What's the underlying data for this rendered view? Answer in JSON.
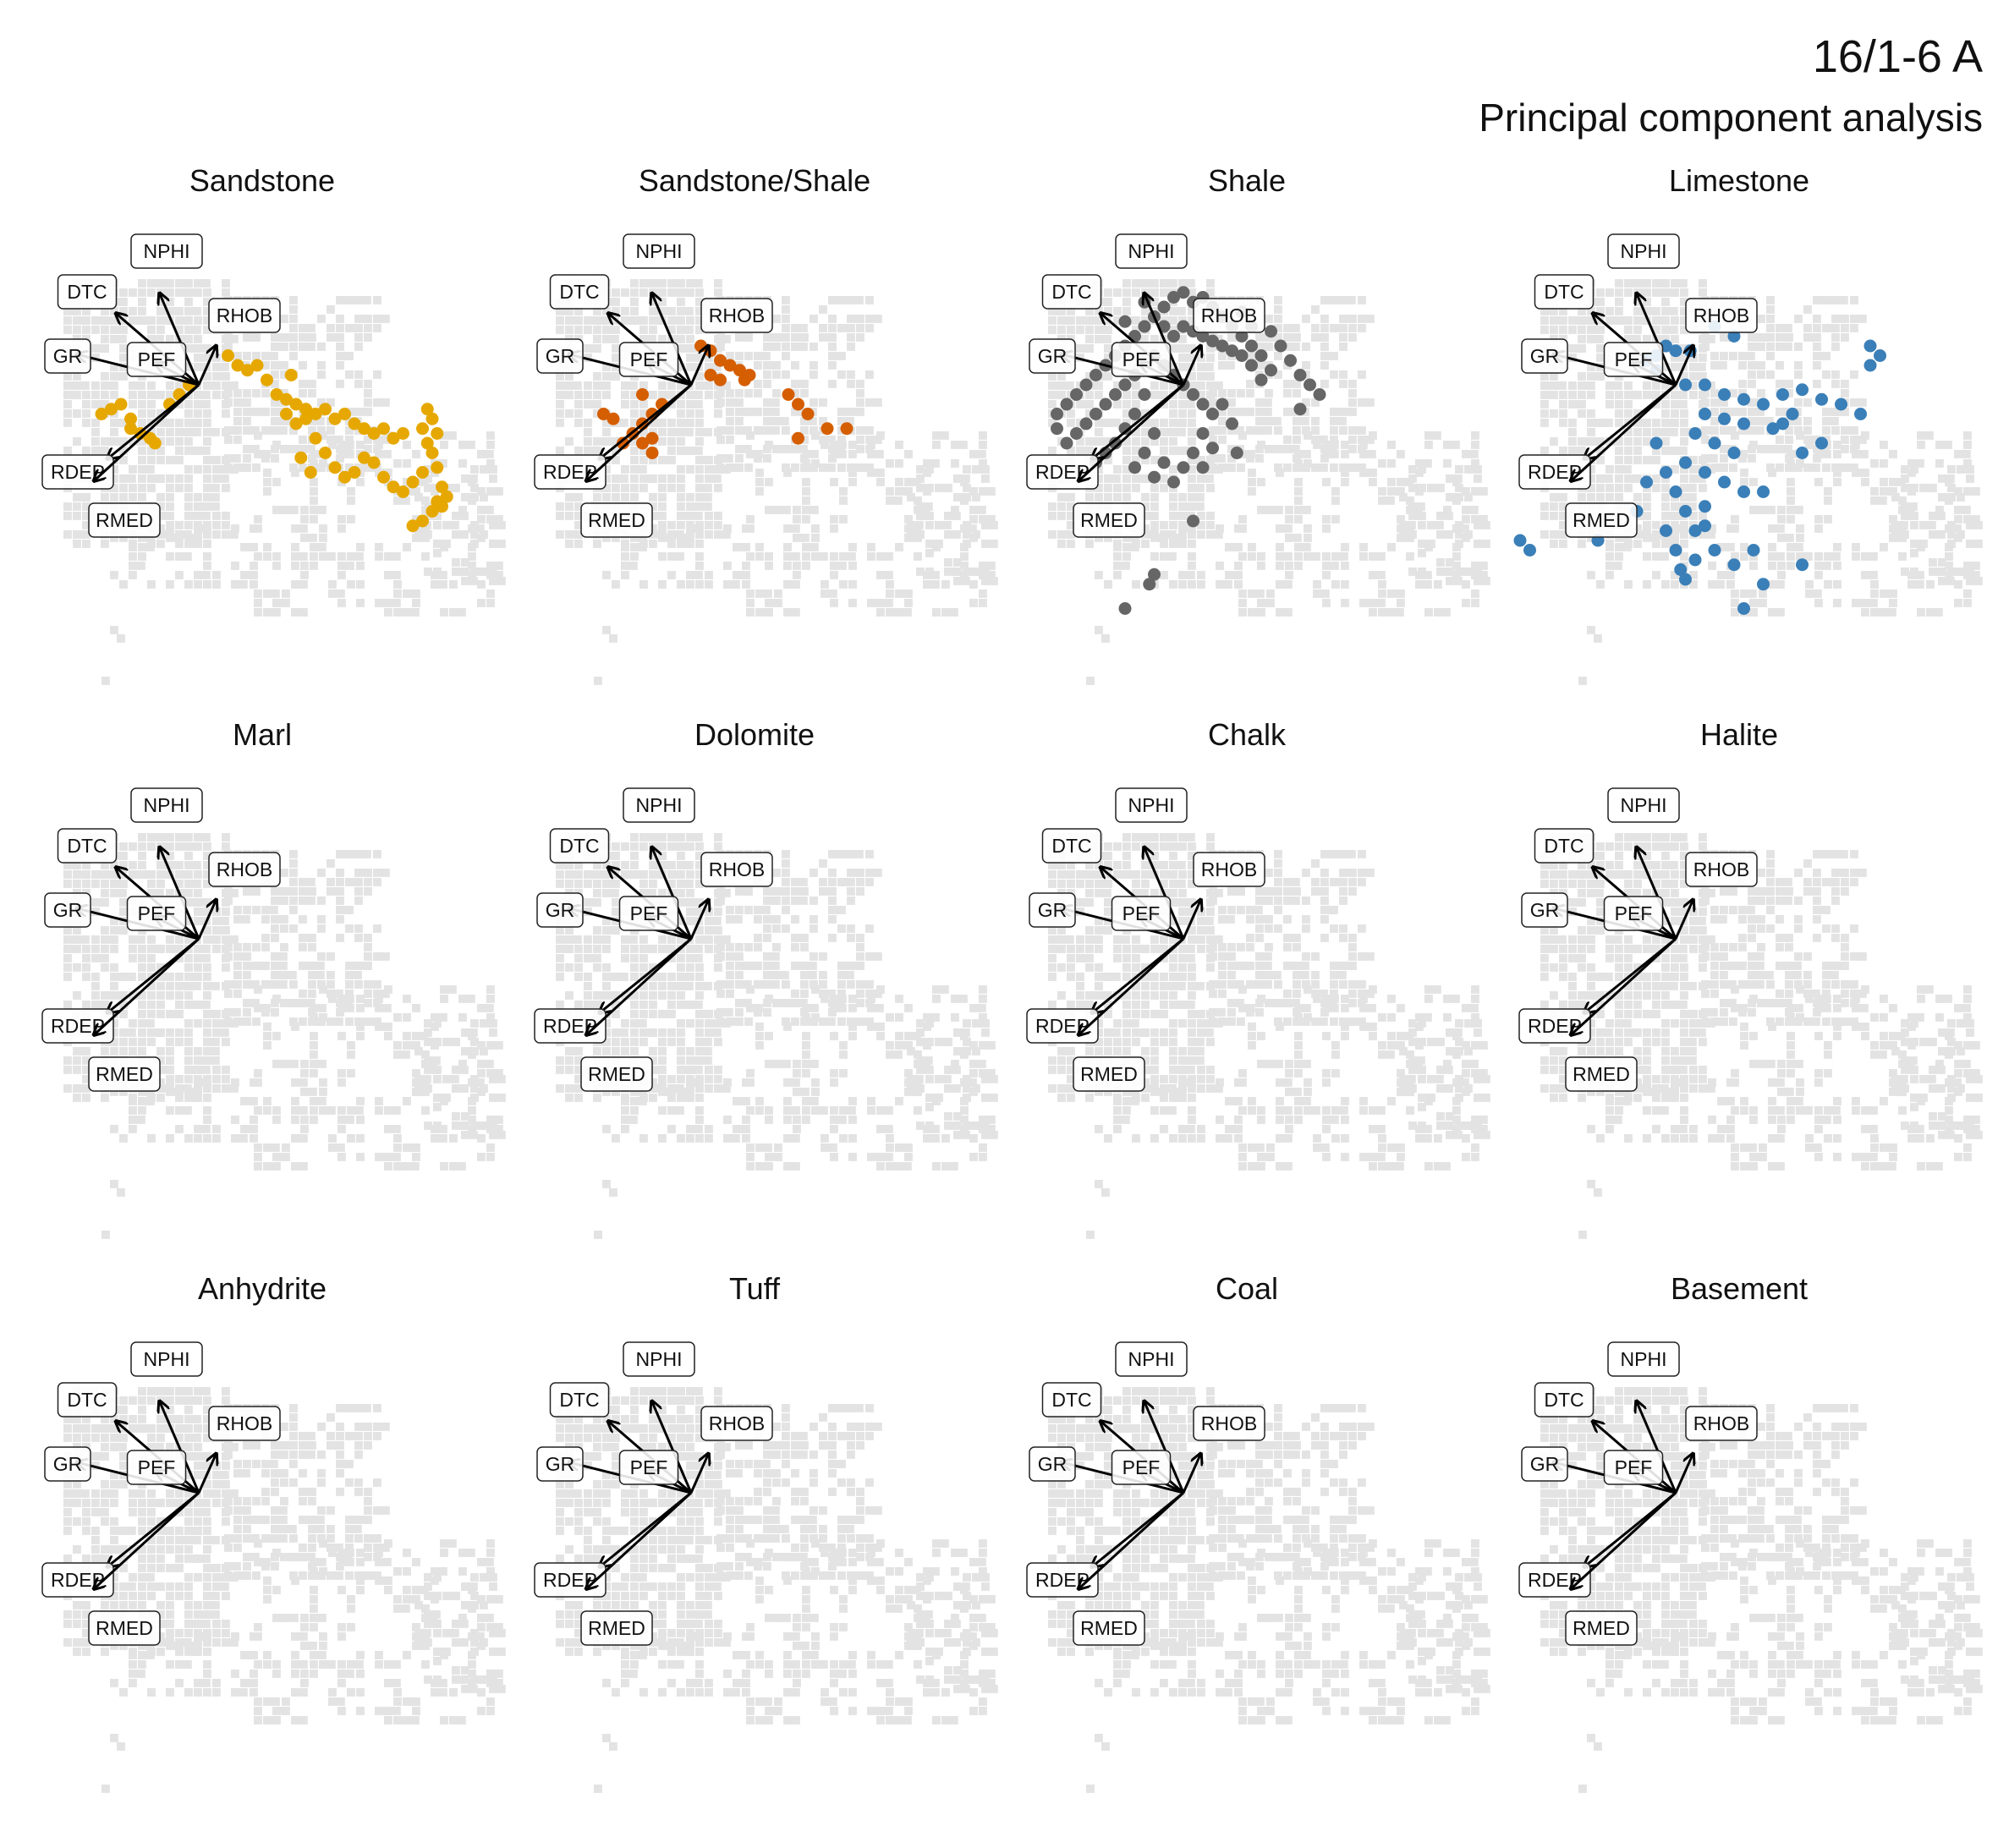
{
  "title": "16/1-6 A",
  "subtitle": "Principal component analysis",
  "chart_data": {
    "type": "scatter",
    "description_mode": "faceted PCA biplot, one panel per lithology; grey background shows all samples, colored points show samples of that lithology; arrows are variable loadings",
    "grid": false,
    "background_color": "#e3e3e3",
    "loadings": [
      {
        "label": "NPHI",
        "x": -0.45,
        "y": 1.05
      },
      {
        "label": "DTC",
        "x": -0.95,
        "y": 0.82
      },
      {
        "label": "RHOB",
        "x": 0.2,
        "y": 0.45
      },
      {
        "label": "GR",
        "x": -1.4,
        "y": 0.35
      },
      {
        "label": "PEF",
        "x": -0.5,
        "y": 0.25
      },
      {
        "label": "RDEP",
        "x": -1.05,
        "y": -0.85
      },
      {
        "label": "RMED",
        "x": -1.2,
        "y": -1.1
      }
    ],
    "facets": [
      {
        "name": "Sandstone",
        "color": "#E6A800",
        "points": [
          [
            -0.8,
            -0.2
          ],
          [
            -0.9,
            -0.25
          ],
          [
            -1.0,
            -0.3
          ],
          [
            -0.7,
            -0.35
          ],
          [
            -0.6,
            -0.5
          ],
          [
            -0.5,
            -0.55
          ],
          [
            -0.45,
            -0.6
          ],
          [
            -0.7,
            -0.45
          ],
          [
            -0.3,
            -0.2
          ],
          [
            -0.2,
            -0.1
          ],
          [
            -0.1,
            0.0
          ],
          [
            0.3,
            0.3
          ],
          [
            0.4,
            0.2
          ],
          [
            0.5,
            0.15
          ],
          [
            0.6,
            0.2
          ],
          [
            0.7,
            0.05
          ],
          [
            0.8,
            -0.1
          ],
          [
            0.9,
            -0.15
          ],
          [
            1.0,
            -0.2
          ],
          [
            1.1,
            -0.25
          ],
          [
            1.2,
            -0.3
          ],
          [
            1.3,
            -0.25
          ],
          [
            1.4,
            -0.35
          ],
          [
            1.5,
            -0.3
          ],
          [
            1.6,
            -0.4
          ],
          [
            1.7,
            -0.45
          ],
          [
            1.8,
            -0.5
          ],
          [
            1.9,
            -0.45
          ],
          [
            2.0,
            -0.55
          ],
          [
            2.1,
            -0.5
          ],
          [
            1.2,
            -0.55
          ],
          [
            1.3,
            -0.7
          ],
          [
            1.4,
            -0.85
          ],
          [
            1.5,
            -0.95
          ],
          [
            1.6,
            -0.9
          ],
          [
            1.7,
            -0.75
          ],
          [
            1.8,
            -0.8
          ],
          [
            1.9,
            -0.95
          ],
          [
            2.0,
            -1.05
          ],
          [
            2.1,
            -1.1
          ],
          [
            2.2,
            -1.0
          ],
          [
            2.3,
            -0.9
          ],
          [
            2.4,
            -0.7
          ],
          [
            2.45,
            -0.5
          ],
          [
            2.4,
            -0.35
          ],
          [
            2.35,
            -0.25
          ],
          [
            2.3,
            -0.45
          ],
          [
            2.35,
            -0.6
          ],
          [
            2.45,
            -0.85
          ],
          [
            2.5,
            -1.05
          ],
          [
            2.45,
            -1.2
          ],
          [
            2.4,
            -1.3
          ],
          [
            2.3,
            -1.4
          ],
          [
            2.2,
            -1.45
          ],
          [
            2.5,
            -1.25
          ],
          [
            2.55,
            -1.15
          ],
          [
            1.0,
            -0.4
          ],
          [
            1.1,
            -0.35
          ],
          [
            0.9,
            -0.3
          ],
          [
            1.05,
            -0.75
          ],
          [
            1.15,
            -0.9
          ],
          [
            0.95,
            0.1
          ]
        ]
      },
      {
        "name": "Sandstone/Shale",
        "color": "#D55E00",
        "points": [
          [
            0.1,
            0.4
          ],
          [
            0.2,
            0.35
          ],
          [
            0.3,
            0.25
          ],
          [
            0.4,
            0.2
          ],
          [
            0.5,
            0.15
          ],
          [
            0.55,
            0.05
          ],
          [
            0.6,
            0.1
          ],
          [
            0.2,
            0.1
          ],
          [
            0.3,
            0.05
          ],
          [
            1.0,
            -0.1
          ],
          [
            1.1,
            -0.2
          ],
          [
            1.2,
            -0.3
          ],
          [
            1.4,
            -0.45
          ],
          [
            1.6,
            -0.45
          ],
          [
            1.1,
            -0.55
          ],
          [
            -0.3,
            -0.2
          ],
          [
            -0.4,
            -0.3
          ],
          [
            -0.5,
            -0.4
          ],
          [
            -0.6,
            -0.5
          ],
          [
            -0.7,
            -0.6
          ],
          [
            -0.5,
            -0.6
          ],
          [
            -0.4,
            -0.55
          ],
          [
            -0.8,
            -0.35
          ],
          [
            -0.9,
            -0.3
          ],
          [
            -0.5,
            -0.1
          ],
          [
            -0.4,
            -0.7
          ]
        ]
      },
      {
        "name": "Shale",
        "color": "#666666",
        "points": [
          [
            -0.2,
            0.8
          ],
          [
            -0.1,
            0.9
          ],
          [
            0.0,
            0.95
          ],
          [
            0.1,
            0.85
          ],
          [
            0.2,
            0.9
          ],
          [
            0.3,
            0.8
          ],
          [
            0.4,
            0.7
          ],
          [
            0.5,
            0.6
          ],
          [
            0.6,
            0.5
          ],
          [
            0.7,
            0.4
          ],
          [
            0.8,
            0.3
          ],
          [
            0.9,
            0.15
          ],
          [
            -0.3,
            0.7
          ],
          [
            -0.4,
            0.6
          ],
          [
            -0.5,
            0.5
          ],
          [
            -0.6,
            0.4
          ],
          [
            -0.2,
            0.6
          ],
          [
            -0.1,
            0.5
          ],
          [
            0.0,
            0.6
          ],
          [
            0.1,
            0.55
          ],
          [
            0.2,
            0.5
          ],
          [
            0.3,
            0.45
          ],
          [
            0.4,
            0.4
          ],
          [
            0.5,
            0.35
          ],
          [
            0.6,
            0.3
          ],
          [
            0.7,
            0.2
          ],
          [
            0.8,
            0.05
          ],
          [
            -0.7,
            0.3
          ],
          [
            -0.8,
            0.2
          ],
          [
            -0.9,
            0.1
          ],
          [
            -1.0,
            0.0
          ],
          [
            -1.1,
            -0.1
          ],
          [
            -1.2,
            -0.2
          ],
          [
            -1.3,
            -0.3
          ],
          [
            -0.3,
            0.3
          ],
          [
            -0.2,
            0.2
          ],
          [
            -0.1,
            0.1
          ],
          [
            0.0,
            0.0
          ],
          [
            0.1,
            -0.1
          ],
          [
            0.2,
            -0.2
          ],
          [
            0.3,
            -0.3
          ],
          [
            0.2,
            -0.5
          ],
          [
            0.1,
            -0.7
          ],
          [
            0.0,
            -0.85
          ],
          [
            -0.1,
            -1.0
          ],
          [
            -0.5,
            0.1
          ],
          [
            -0.6,
            0.0
          ],
          [
            -0.7,
            -0.1
          ],
          [
            -0.8,
            -0.2
          ],
          [
            -0.9,
            -0.3
          ],
          [
            -1.0,
            -0.4
          ],
          [
            -1.1,
            -0.5
          ],
          [
            -0.4,
            -0.1
          ],
          [
            -0.5,
            -0.3
          ],
          [
            -0.6,
            -0.45
          ],
          [
            -0.7,
            -0.6
          ],
          [
            -0.8,
            -0.7
          ],
          [
            -0.3,
            -0.5
          ],
          [
            -0.4,
            -0.7
          ],
          [
            -0.5,
            -0.85
          ],
          [
            -0.2,
            -0.8
          ],
          [
            -0.3,
            -0.95
          ],
          [
            0.4,
            -0.2
          ],
          [
            0.5,
            -0.4
          ],
          [
            0.3,
            -0.65
          ],
          [
            0.2,
            -0.85
          ],
          [
            -0.9,
            -0.8
          ],
          [
            -1.2,
            -0.6
          ],
          [
            -1.3,
            -0.45
          ],
          [
            -0.6,
            0.65
          ],
          [
            -0.4,
            0.85
          ],
          [
            0.6,
            0.75
          ],
          [
            0.7,
            0.6
          ],
          [
            0.9,
            0.55
          ],
          [
            1.0,
            0.4
          ],
          [
            1.1,
            0.25
          ],
          [
            1.2,
            0.1
          ],
          [
            1.3,
            0.0
          ],
          [
            1.4,
            -0.1
          ],
          [
            1.2,
            -0.25
          ],
          [
            0.55,
            -0.7
          ],
          [
            0.1,
            -1.4
          ],
          [
            -0.3,
            -1.95
          ],
          [
            -0.35,
            -2.05
          ],
          [
            -0.6,
            -2.3
          ]
        ]
      },
      {
        "name": "Limestone",
        "color": "#3A7FB8",
        "points": [
          [
            -0.1,
            0.4
          ],
          [
            0.0,
            0.35
          ],
          [
            -0.2,
            0.3
          ],
          [
            -0.3,
            0.25
          ],
          [
            -0.2,
            0.15
          ],
          [
            0.1,
            0.0
          ],
          [
            0.3,
            0.0
          ],
          [
            0.5,
            -0.1
          ],
          [
            0.7,
            -0.15
          ],
          [
            0.9,
            -0.2
          ],
          [
            1.1,
            -0.1
          ],
          [
            1.3,
            -0.05
          ],
          [
            1.5,
            -0.15
          ],
          [
            1.7,
            -0.2
          ],
          [
            1.9,
            -0.3
          ],
          [
            2.0,
            0.4
          ],
          [
            2.1,
            0.3
          ],
          [
            2.0,
            0.2
          ],
          [
            0.3,
            -0.3
          ],
          [
            0.5,
            -0.35
          ],
          [
            0.7,
            -0.4
          ],
          [
            0.2,
            -0.5
          ],
          [
            0.4,
            -0.6
          ],
          [
            0.6,
            -0.7
          ],
          [
            0.1,
            -0.8
          ],
          [
            0.3,
            -0.9
          ],
          [
            0.5,
            -1.0
          ],
          [
            0.7,
            -1.1
          ],
          [
            -0.2,
            -0.6
          ],
          [
            -0.1,
            -0.9
          ],
          [
            0.0,
            -1.1
          ],
          [
            0.1,
            -1.3
          ],
          [
            0.2,
            -1.5
          ],
          [
            0.3,
            -1.45
          ],
          [
            -0.1,
            -1.5
          ],
          [
            0.0,
            -1.7
          ],
          [
            0.2,
            -1.8
          ],
          [
            0.4,
            -1.7
          ],
          [
            0.6,
            -1.85
          ],
          [
            0.3,
            -1.25
          ],
          [
            -0.3,
            -1.0
          ],
          [
            -0.4,
            -1.3
          ],
          [
            0.05,
            -1.9
          ],
          [
            0.1,
            -2.0
          ],
          [
            0.8,
            -1.7
          ],
          [
            0.9,
            -1.1
          ],
          [
            1.3,
            -0.7
          ],
          [
            1.5,
            -0.6
          ],
          [
            1.1,
            -0.4
          ],
          [
            1.2,
            -0.3
          ],
          [
            -0.8,
            -1.6
          ],
          [
            -1.5,
            -1.7
          ],
          [
            -1.6,
            -1.6
          ],
          [
            0.4,
            0.6
          ],
          [
            0.6,
            0.5
          ],
          [
            0.15,
            0.35
          ],
          [
            0.9,
            -2.05
          ],
          [
            1.3,
            -1.85
          ],
          [
            0.7,
            -2.3
          ],
          [
            1.0,
            -0.45
          ]
        ]
      },
      {
        "name": "Marl",
        "color": "#888888",
        "points": []
      },
      {
        "name": "Dolomite",
        "color": "#888888",
        "points": []
      },
      {
        "name": "Chalk",
        "color": "#888888",
        "points": []
      },
      {
        "name": "Halite",
        "color": "#888888",
        "points": []
      },
      {
        "name": "Anhydrite",
        "color": "#888888",
        "points": []
      },
      {
        "name": "Tuff",
        "color": "#888888",
        "points": []
      },
      {
        "name": "Coal",
        "color": "#888888",
        "points": []
      },
      {
        "name": "Basement",
        "color": "#888888",
        "points": []
      }
    ]
  }
}
